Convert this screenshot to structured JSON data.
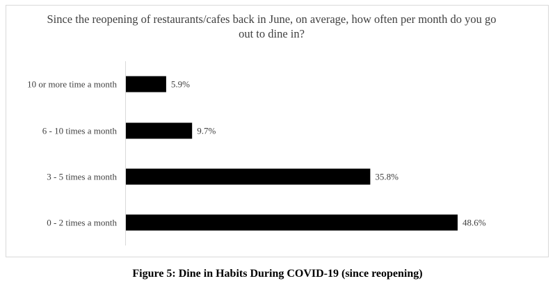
{
  "chart_data": {
    "type": "bar",
    "orientation": "horizontal",
    "title": "Since the reopening of restaurants/cafes back in June, on average, how often per month do you go out to dine in?",
    "categories": [
      "10 or more time a month",
      "6 - 10 times a month",
      "3 - 5 times a month",
      "0 - 2 times a month"
    ],
    "values": [
      5.9,
      9.7,
      35.8,
      48.6
    ],
    "data_labels": [
      "5.9%",
      "9.7%",
      "35.8%",
      "48.6%"
    ],
    "xlim": [
      0,
      52
    ],
    "grid": false,
    "legend": "none",
    "bar_color": "#000000"
  },
  "caption": "Figure 5: Dine in Habits During COVID-19 (since reopening)"
}
